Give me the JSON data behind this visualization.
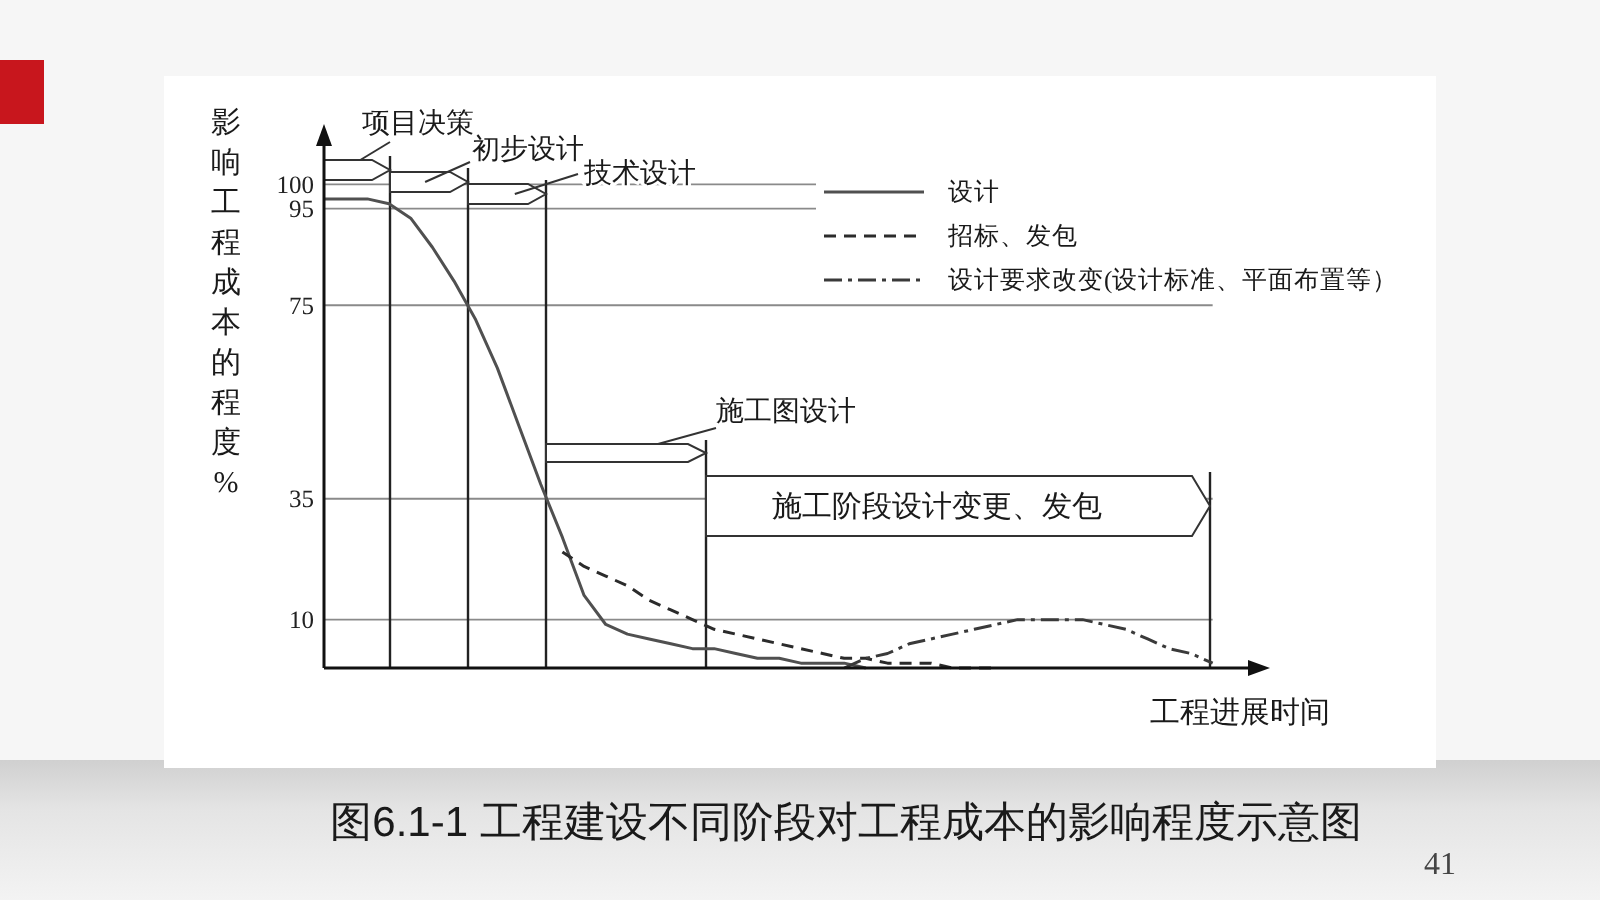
{
  "chart_data": {
    "type": "line",
    "title": "图6.1-1 工程建设不同阶段对工程成本的影响程度示意图",
    "xlabel": "工程进展时间",
    "ylabel": "影响工程成本的程度%",
    "categories": [
      null,
      null,
      null,
      null,
      null,
      null,
      null,
      null,
      null,
      null,
      null,
      null,
      null,
      null,
      null,
      null,
      null,
      null,
      null,
      null,
      null,
      null,
      null,
      null,
      null,
      null,
      null,
      null,
      null,
      null,
      null,
      null,
      null,
      null,
      null,
      null,
      null,
      null,
      null,
      null,
      null,
      null
    ],
    "series": [
      {
        "name": "设计",
        "color": "#505050",
        "line_style": "solid",
        "values": [
          97,
          97,
          97,
          96,
          93,
          87,
          80,
          72,
          62,
          50,
          38,
          27,
          15,
          9,
          7,
          6,
          5,
          4,
          4,
          3,
          2,
          2,
          1,
          1,
          1,
          0,
          null,
          null,
          null,
          null,
          null,
          null,
          null,
          null,
          null,
          null,
          null,
          null,
          null,
          null,
          null,
          null
        ]
      },
      {
        "name": "招标、发包",
        "color": "#2b2b2b",
        "line_style": "dashed",
        "values": [
          null,
          null,
          null,
          null,
          null,
          null,
          null,
          null,
          null,
          null,
          null,
          24,
          21,
          19,
          17,
          14,
          12,
          10,
          8,
          7,
          6,
          5,
          4,
          3,
          2,
          2,
          1,
          1,
          1,
          0,
          0,
          0,
          null,
          null,
          null,
          null,
          null,
          null,
          null,
          null,
          null,
          null
        ]
      },
      {
        "name": "设计要求改变(设计标准、平面布置等）",
        "color": "#3a3a3a",
        "line_style": "dashdot",
        "values": [
          null,
          null,
          null,
          null,
          null,
          null,
          null,
          null,
          null,
          null,
          null,
          null,
          null,
          null,
          null,
          null,
          null,
          null,
          null,
          null,
          null,
          null,
          null,
          null,
          0,
          2,
          3,
          5,
          6,
          7,
          8,
          9,
          10,
          10,
          10,
          10,
          9,
          8,
          6,
          4,
          3,
          1
        ]
      }
    ],
    "ylim": [
      0,
      110
    ],
    "yticks": [
      10,
      35,
      75,
      95,
      100
    ],
    "grid": "y",
    "legend": "top right",
    "annotations": [
      "项目决策",
      "初步设计",
      "技术设计",
      "施工图设计",
      "施工阶段设计变更、发包",
      "41"
    ]
  }
}
